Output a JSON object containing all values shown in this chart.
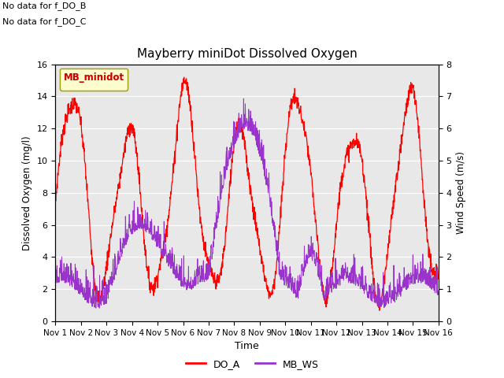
{
  "title": "Mayberry miniDot Dissolved Oxygen",
  "xlabel": "Time",
  "ylabel_left": "Dissolved Oxygen (mg/l)",
  "ylabel_right": "Wind Speed (m/s)",
  "annotations": [
    "No data for f_DO_B",
    "No data for f_DO_C"
  ],
  "legend_label": "MB_minidot",
  "legend_entries": [
    "DO_A",
    "MB_WS"
  ],
  "do_color": "#ff0000",
  "ws_color": "#9933cc",
  "ylim_left": [
    0,
    16
  ],
  "ylim_right": [
    0,
    8.0
  ],
  "yticks_left": [
    0,
    2,
    4,
    6,
    8,
    10,
    12,
    14,
    16
  ],
  "yticks_right": [
    0.0,
    1.0,
    2.0,
    3.0,
    4.0,
    5.0,
    6.0,
    7.0,
    8.0
  ],
  "xtick_labels": [
    "Nov 1",
    "Nov 2",
    "Nov 3",
    "Nov 4",
    "Nov 5",
    "Nov 6",
    "Nov 7",
    "Nov 8",
    "Nov 9",
    "Nov 10",
    "Nov 11",
    "Nov 12",
    "Nov 13",
    "Nov 14",
    "Nov 15",
    "Nov 16"
  ],
  "bg_color": "#ffffff",
  "plot_bg_color": "#e8e8e8",
  "grid_color": "#ffffff",
  "figsize": [
    6.4,
    4.8
  ],
  "dpi": 100
}
